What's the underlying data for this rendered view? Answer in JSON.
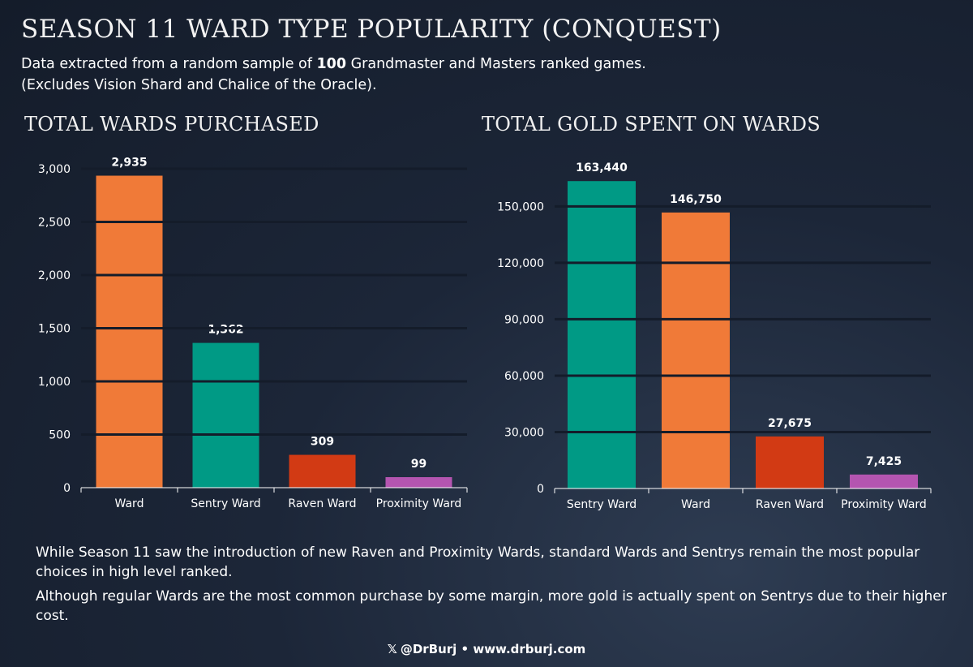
{
  "header": {
    "title": "SEASON 11 WARD TYPE POPULARITY (CONQUEST)",
    "subtitle_pre": "Data extracted from a random sample of ",
    "subtitle_bold": "100",
    "subtitle_post": " Grandmaster and Masters ranked games.",
    "subtitle_line2": "(Excludes Vision Shard and Chalice of the Oracle)."
  },
  "chart_data": [
    {
      "type": "bar",
      "title": "TOTAL WARDS PURCHASED",
      "categories": [
        "Ward",
        "Sentry Ward",
        "Raven Ward",
        "Proximity Ward"
      ],
      "values": [
        2935,
        1362,
        309,
        99
      ],
      "value_labels": [
        "2,935",
        "1,362",
        "309",
        "99"
      ],
      "colors": [
        "#f07a38",
        "#009a85",
        "#d23a14",
        "#b455b0"
      ],
      "yticks": [
        0,
        500,
        1000,
        1500,
        2000,
        2500,
        3000
      ],
      "ytick_labels": [
        "0",
        "500",
        "1,000",
        "1,500",
        "2,000",
        "2,500",
        "3,000"
      ],
      "ylim": [
        0,
        3000
      ],
      "grid": true,
      "xlabel": "",
      "ylabel": ""
    },
    {
      "type": "bar",
      "title": "TOTAL GOLD SPENT ON WARDS",
      "categories": [
        "Sentry Ward",
        "Ward",
        "Raven Ward",
        "Proximity Ward"
      ],
      "values": [
        163440,
        146750,
        27675,
        7425
      ],
      "value_labels": [
        "163,440",
        "146,750",
        "27,675",
        "7,425"
      ],
      "colors": [
        "#009a85",
        "#f07a38",
        "#d23a14",
        "#b455b0"
      ],
      "yticks": [
        0,
        30000,
        60000,
        90000,
        120000,
        150000
      ],
      "ytick_labels": [
        "0",
        "30,000",
        "60,000",
        "90,000",
        "120,000",
        "150,000"
      ],
      "ylim": [
        0,
        170000
      ],
      "grid": true,
      "xlabel": "",
      "ylabel": ""
    }
  ],
  "footer": {
    "paragraph1": "While Season 11 saw the introduction of new Raven and Proximity Wards, standard Wards and Sentrys remain the most popular choices in high level ranked.",
    "paragraph2": "Although regular Wards are the most common purchase by some margin, more gold is actually spent on Sentrys due to their higher cost.",
    "credit_icon": "x-logo-icon",
    "credit_logo": "𝕏",
    "credit": "@DrBurj • www.drburj.com"
  }
}
